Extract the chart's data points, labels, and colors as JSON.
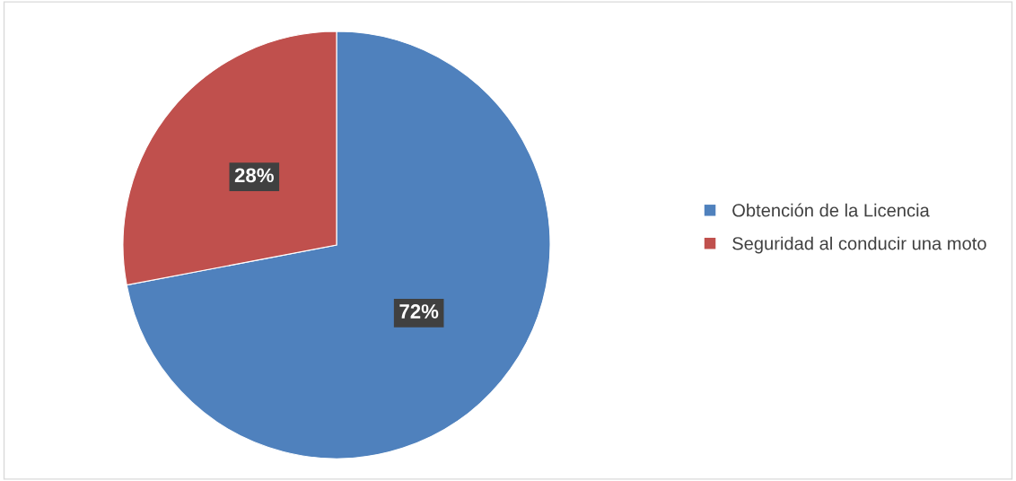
{
  "chart_data": {
    "type": "pie",
    "categories": [
      "Obtención de la Licencia",
      "Seguridad al conducir una moto"
    ],
    "values": [
      72,
      28
    ],
    "colors": [
      "#4f81bd",
      "#c0504d"
    ],
    "value_labels": [
      "72%",
      "28%"
    ],
    "legend": "right"
  }
}
